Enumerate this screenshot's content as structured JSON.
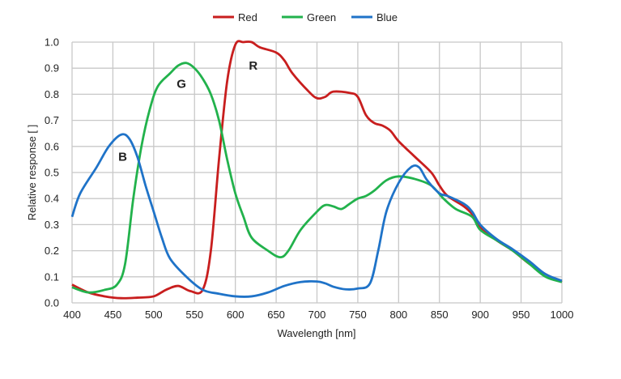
{
  "chart_data": {
    "type": "line",
    "title": "",
    "xlabel": "Wavelength [nm]",
    "ylabel": "Relative response [ ]",
    "xlim": [
      400,
      1000
    ],
    "ylim": [
      0,
      1.0
    ],
    "xticks": [
      "400",
      "450",
      "500",
      "550",
      "600",
      "650",
      "700",
      "750",
      "800",
      "850",
      "900",
      "950",
      "1000"
    ],
    "yticks": [
      "0.0",
      "0.1",
      "0.2",
      "0.3",
      "0.4",
      "0.5",
      "0.6",
      "0.7",
      "0.8",
      "0.9",
      "1.0"
    ],
    "grid": true,
    "legend_position": "top-center",
    "series": [
      {
        "name": "Red",
        "color": "#c81e1e",
        "label": "R",
        "label_at": [
          622,
          0.91
        ],
        "x": [
          400,
          420,
          440,
          460,
          480,
          500,
          515,
          530,
          545,
          560,
          570,
          580,
          590,
          600,
          610,
          620,
          630,
          650,
          660,
          670,
          690,
          700,
          710,
          720,
          740,
          750,
          760,
          770,
          780,
          790,
          800,
          820,
          840,
          850,
          860,
          880,
          890,
          900,
          920,
          940,
          960,
          980,
          1000
        ],
        "y": [
          0.07,
          0.04,
          0.025,
          0.018,
          0.02,
          0.025,
          0.05,
          0.065,
          0.045,
          0.05,
          0.2,
          0.55,
          0.85,
          0.99,
          1.0,
          1.0,
          0.98,
          0.96,
          0.93,
          0.88,
          0.81,
          0.785,
          0.79,
          0.81,
          0.805,
          0.79,
          0.72,
          0.69,
          0.68,
          0.66,
          0.62,
          0.56,
          0.5,
          0.45,
          0.41,
          0.37,
          0.34,
          0.29,
          0.24,
          0.2,
          0.15,
          0.11,
          0.08
        ]
      },
      {
        "name": "Green",
        "color": "#22b24c",
        "label": "G",
        "label_at": [
          534,
          0.84
        ],
        "x": [
          400,
          420,
          440,
          455,
          465,
          475,
          485,
          495,
          505,
          520,
          530,
          540,
          550,
          560,
          570,
          580,
          590,
          600,
          610,
          620,
          640,
          655,
          665,
          680,
          700,
          710,
          720,
          730,
          740,
          750,
          760,
          770,
          785,
          800,
          820,
          840,
          855,
          870,
          890,
          900,
          920,
          940,
          960,
          980,
          1000
        ],
        "y": [
          0.06,
          0.04,
          0.05,
          0.07,
          0.15,
          0.4,
          0.6,
          0.74,
          0.83,
          0.88,
          0.91,
          0.92,
          0.9,
          0.86,
          0.8,
          0.7,
          0.55,
          0.42,
          0.33,
          0.25,
          0.2,
          0.175,
          0.2,
          0.28,
          0.35,
          0.375,
          0.37,
          0.36,
          0.38,
          0.4,
          0.41,
          0.43,
          0.47,
          0.485,
          0.475,
          0.45,
          0.4,
          0.36,
          0.33,
          0.28,
          0.24,
          0.2,
          0.15,
          0.1,
          0.08
        ]
      },
      {
        "name": "Blue",
        "color": "#1f73c8",
        "label": "B",
        "label_at": [
          462,
          0.56
        ],
        "x": [
          400,
          410,
          430,
          445,
          460,
          470,
          480,
          490,
          500,
          510,
          520,
          540,
          560,
          580,
          600,
          620,
          640,
          660,
          680,
          700,
          710,
          720,
          735,
          750,
          765,
          775,
          785,
          800,
          815,
          825,
          835,
          850,
          860,
          880,
          890,
          900,
          920,
          940,
          960,
          980,
          1000
        ],
        "y": [
          0.33,
          0.42,
          0.52,
          0.6,
          0.645,
          0.63,
          0.56,
          0.45,
          0.35,
          0.25,
          0.17,
          0.1,
          0.05,
          0.035,
          0.025,
          0.025,
          0.04,
          0.065,
          0.08,
          0.082,
          0.075,
          0.062,
          0.052,
          0.055,
          0.075,
          0.2,
          0.35,
          0.46,
          0.52,
          0.52,
          0.47,
          0.42,
          0.41,
          0.38,
          0.35,
          0.3,
          0.245,
          0.205,
          0.16,
          0.11,
          0.085
        ]
      }
    ]
  }
}
